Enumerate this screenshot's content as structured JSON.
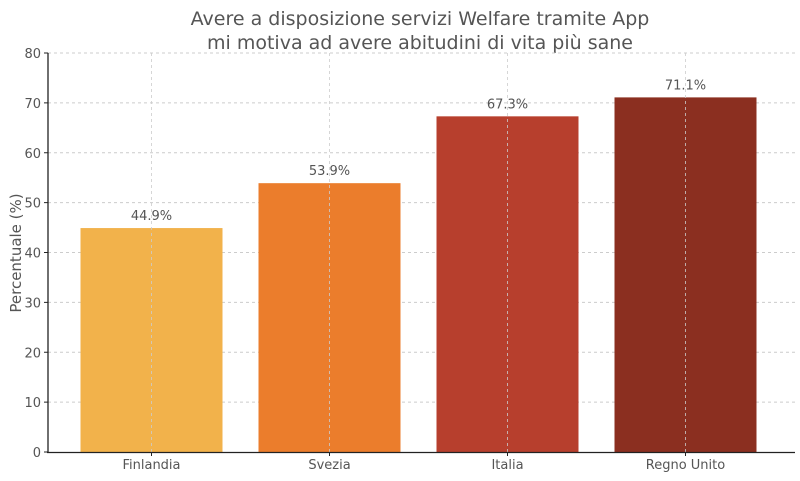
{
  "chart_data": {
    "type": "bar",
    "title": [
      "Avere a disposizione servizi Welfare tramite App",
      "mi motiva ad avere abitudini di vita più sane"
    ],
    "xlabel": "",
    "ylabel": "Percentuale (%)",
    "ylim": [
      0,
      80
    ],
    "yticks": [
      0,
      10,
      20,
      30,
      40,
      50,
      60,
      70,
      80
    ],
    "grid": true,
    "categories": [
      "Finlandia",
      "Svezia",
      "Italia",
      "Regno Unito"
    ],
    "values": [
      44.9,
      53.9,
      67.3,
      71.1
    ],
    "data_labels": [
      "44.9%",
      "53.9%",
      "67.3%",
      "71.1%"
    ],
    "colors": [
      "#F2B24B",
      "#EB7D2C",
      "#B73F2D",
      "#8B2F20"
    ]
  }
}
